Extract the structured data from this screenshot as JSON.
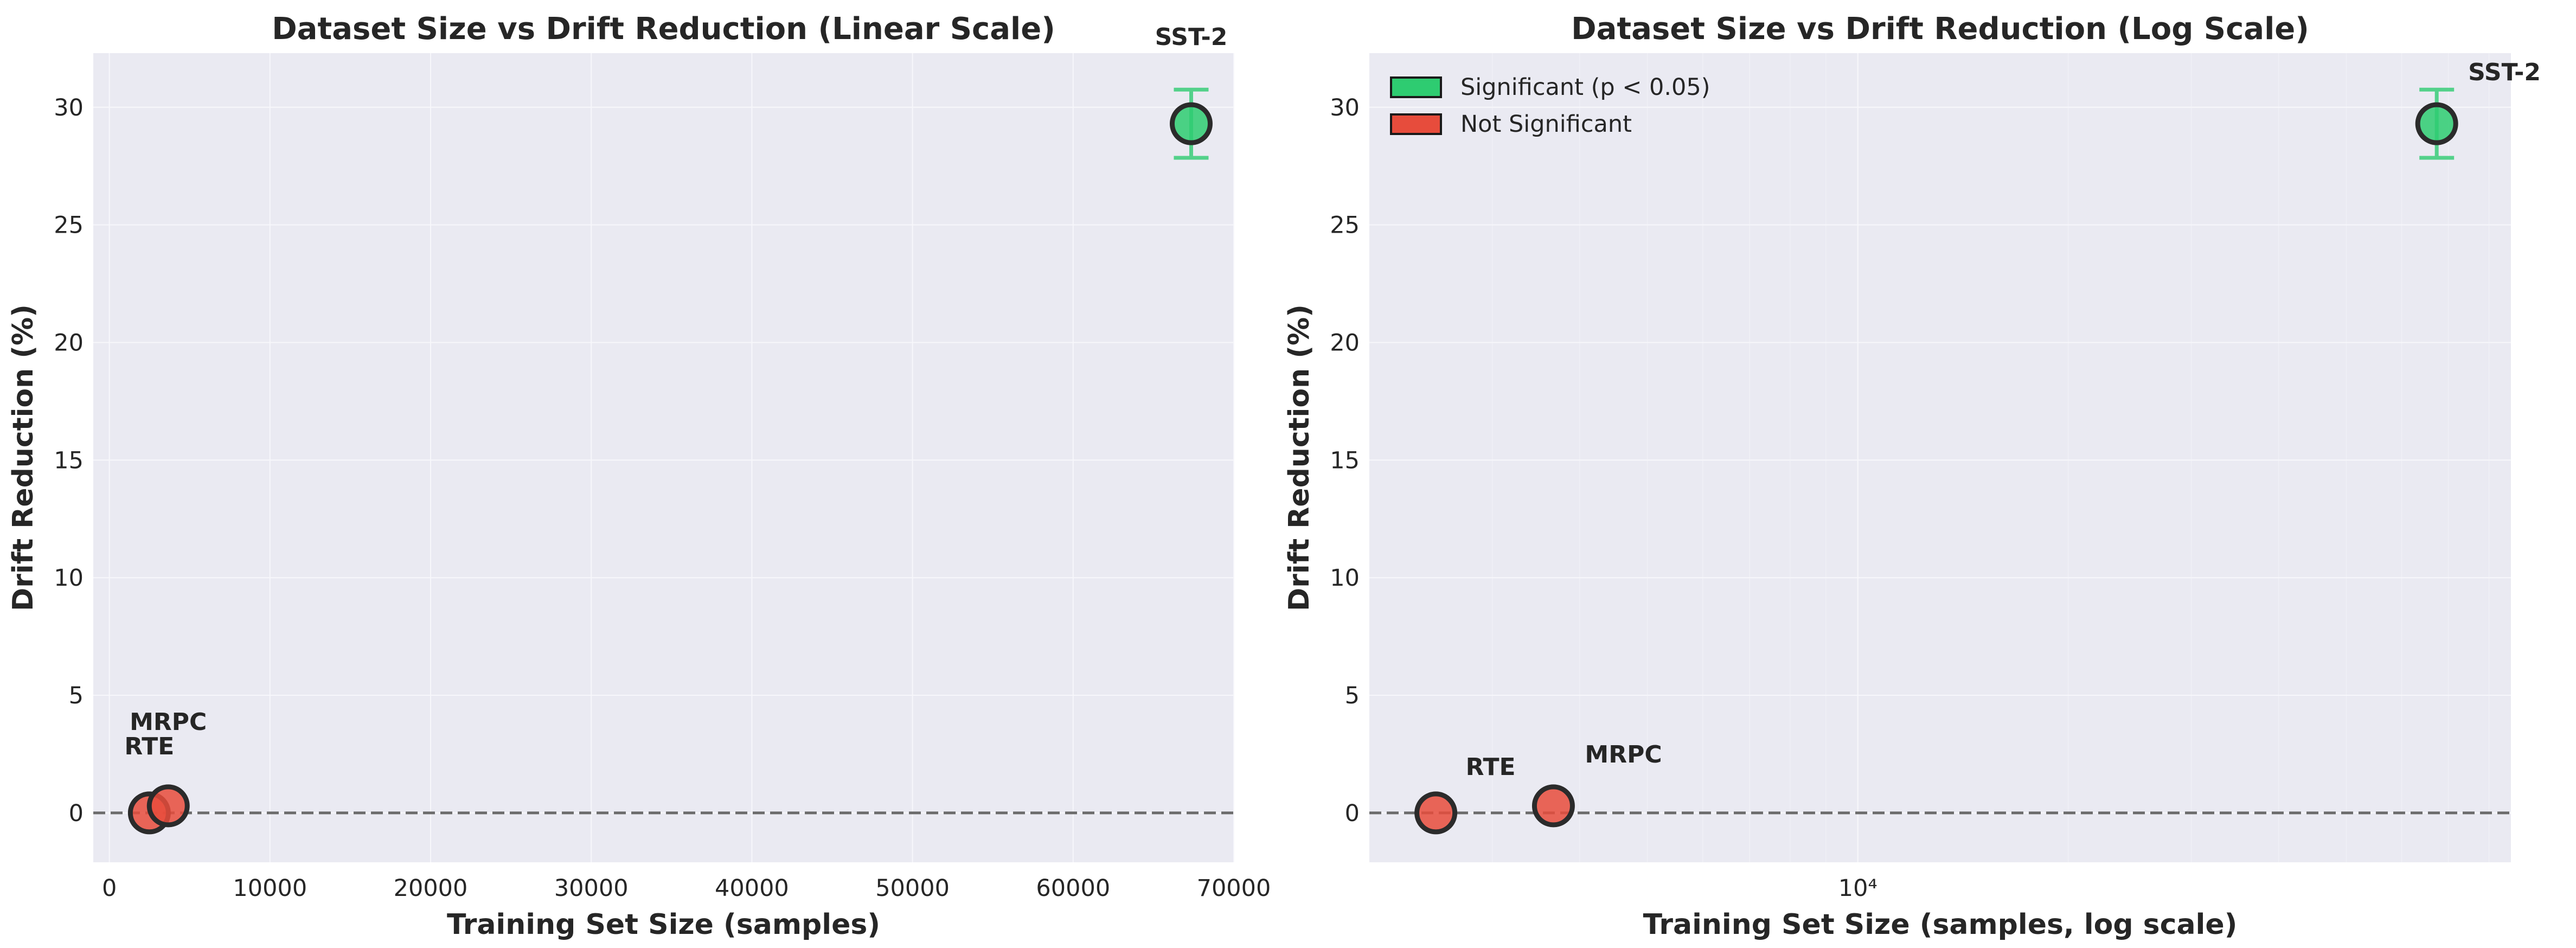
{
  "colors": {
    "background": "#ffffff",
    "plot_bg": "#eaeaf2",
    "grid": "#f7f7fb",
    "significant": "#2ecc71",
    "not_significant": "#e74c3c",
    "marker_edge": "#2b2b2b",
    "zero_line": "#6b6b6b"
  },
  "chart_data": [
    {
      "type": "scatter",
      "title": "Dataset Size vs Drift Reduction (Linear Scale)",
      "xlabel": "Training Set Size (samples)",
      "ylabel": "Drift Reduction (%)",
      "xscale": "linear",
      "xlim": [
        -1000,
        70000
      ],
      "ylim": [
        -2.1,
        32.3
      ],
      "xticks": [
        0,
        10000,
        20000,
        30000,
        40000,
        50000,
        60000,
        70000
      ],
      "xtick_labels": [
        "0",
        "10000",
        "20000",
        "30000",
        "40000",
        "50000",
        "60000",
        "70000"
      ],
      "yticks": [
        0,
        5,
        10,
        15,
        20,
        25,
        30
      ],
      "ytick_labels": [
        "0",
        "5",
        "10",
        "15",
        "20",
        "25",
        "30"
      ],
      "grid": true,
      "reference_line_y": 0,
      "points": [
        {
          "label": "RTE",
          "x": 2490,
          "y": 0.0,
          "error": 0,
          "significant": false
        },
        {
          "label": "MRPC",
          "x": 3668,
          "y": 0.3,
          "error": 0,
          "significant": false
        },
        {
          "label": "SST-2",
          "x": 67349,
          "y": 29.3,
          "error": 1.45,
          "significant": true
        }
      ]
    },
    {
      "type": "scatter",
      "title": "Dataset Size vs Drift Reduction (Log Scale)",
      "xlabel": "Training Set Size (samples, log scale)",
      "ylabel": "Drift Reduction (%)",
      "xscale": "log",
      "xlim": [
        2000,
        86000
      ],
      "ylim": [
        -2.1,
        32.3
      ],
      "xticks": [
        10000
      ],
      "xtick_labels": [
        "10⁴"
      ],
      "yticks": [
        0,
        5,
        10,
        15,
        20,
        25,
        30
      ],
      "ytick_labels": [
        "0",
        "5",
        "10",
        "15",
        "20",
        "25",
        "30"
      ],
      "grid": true,
      "reference_line_y": 0,
      "legend": {
        "position": "top-left",
        "entries": [
          {
            "label": "Significant (p < 0.05)",
            "color_key": "significant"
          },
          {
            "label": "Not Significant",
            "color_key": "not_significant"
          }
        ]
      },
      "points": [
        {
          "label": "RTE",
          "x": 2490,
          "y": 0.0,
          "error": 0,
          "significant": false
        },
        {
          "label": "MRPC",
          "x": 3668,
          "y": 0.3,
          "error": 0,
          "significant": false
        },
        {
          "label": "SST-2",
          "x": 67349,
          "y": 29.3,
          "error": 1.45,
          "significant": true
        }
      ]
    }
  ]
}
